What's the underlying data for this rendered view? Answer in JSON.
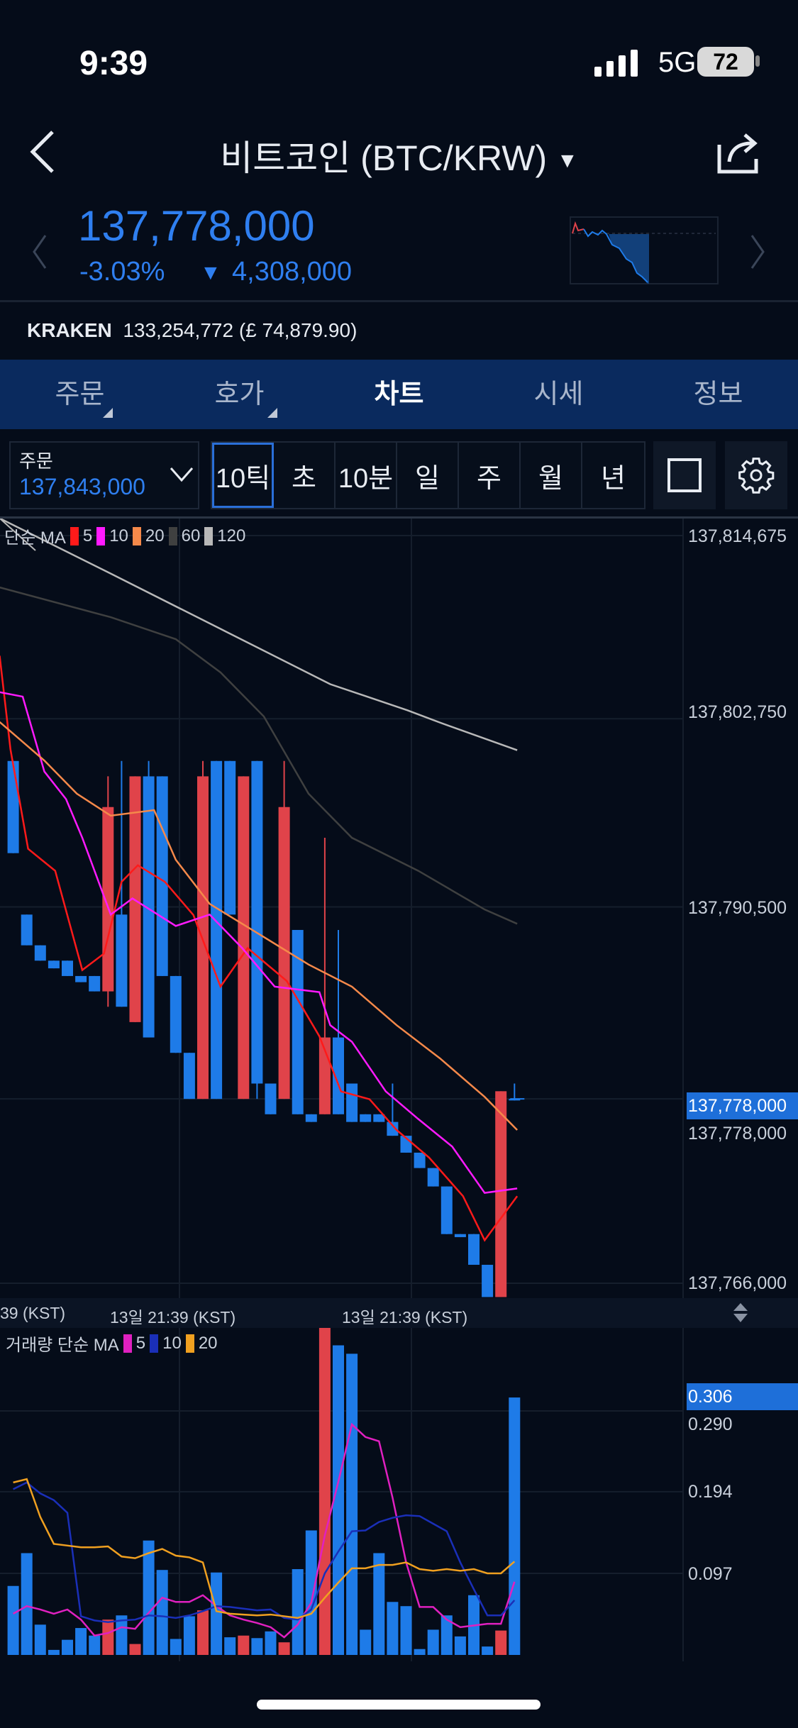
{
  "status": {
    "time": "9:39",
    "network": "5G",
    "battery": "72"
  },
  "header": {
    "title": "비트코인 (BTC/KRW)",
    "back_icon": "chevron-left-icon",
    "share_icon": "share-icon"
  },
  "quote": {
    "price": "137,778,000",
    "change_pct": "-3.03%",
    "change_arrow": "▼",
    "change_abs": "4,308,000",
    "color": "#2f7ff0"
  },
  "kraken": {
    "label": "KRAKEN",
    "value": "133,254,772 (£ 74,879.90)"
  },
  "tabs": [
    {
      "label": "주문"
    },
    {
      "label": "호가"
    },
    {
      "label": "차트",
      "active": true
    },
    {
      "label": "시세"
    },
    {
      "label": "정보"
    }
  ],
  "toolbar": {
    "order_label": "주문",
    "order_value": "137,843,000",
    "timeframes": [
      "10틱",
      "초",
      "10분",
      "일",
      "주",
      "월",
      "년"
    ],
    "selected_timeframe": "10틱"
  },
  "price_legend": {
    "title": "단순 MA",
    "items": [
      {
        "label": "5",
        "color": "#ff1a1a"
      },
      {
        "label": "10",
        "color": "#ff1aff"
      },
      {
        "label": "20",
        "color": "#f5894a"
      },
      {
        "label": "60",
        "color": "#3f4040"
      },
      {
        "label": "120",
        "color": "#b8b8b8"
      }
    ]
  },
  "volume_legend": {
    "title": "거래량 단순 MA",
    "items": [
      {
        "label": "5",
        "color": "#e020c0"
      },
      {
        "label": "10",
        "color": "#1a2fb8"
      },
      {
        "label": "20",
        "color": "#f0a020"
      }
    ]
  },
  "time_labels": [
    "39 (KST)",
    "13일 21:39 (KST)",
    "13일 21:39 (KST)"
  ],
  "chart_data": [
    {
      "type": "candlestick",
      "up_color": "#e0434a",
      "down_color": "#1e7be8",
      "y_ticks": [
        "137,814,675",
        "137,802,750",
        "137,790,500",
        "137,778,000",
        "137,766,000"
      ],
      "ylim": [
        137765000,
        137814675
      ],
      "current_price": "137,778,000",
      "candles": [
        [
          137800000,
          137800000,
          137794000,
          137794000
        ],
        [
          137790000,
          137790000,
          137788000,
          137788000
        ],
        [
          137788000,
          137788000,
          137787000,
          137787000
        ],
        [
          137787000,
          137787000,
          137786500,
          137786500
        ],
        [
          137787000,
          137787000,
          137786000,
          137786000
        ],
        [
          137786000,
          137786000,
          137785600,
          137785600
        ],
        [
          137786000,
          137786000,
          137785000,
          137785000
        ],
        [
          137785000,
          137799000,
          137784000,
          137797000
        ],
        [
          137790000,
          137800000,
          137784000,
          137784000
        ],
        [
          137783000,
          137799000,
          137783000,
          137799000
        ],
        [
          137799000,
          137800000,
          137782000,
          137782000
        ],
        [
          137799000,
          137799000,
          137786000,
          137786000
        ],
        [
          137786000,
          137786000,
          137781000,
          137781000
        ],
        [
          137781000,
          137781000,
          137778000,
          137778000
        ],
        [
          137778000,
          137800000,
          137778000,
          137799000
        ],
        [
          137800000,
          137800000,
          137778000,
          137778000
        ],
        [
          137800000,
          137800000,
          137790000,
          137790000
        ],
        [
          137778000,
          137799000,
          137778000,
          137799000
        ],
        [
          137800000,
          137800000,
          137778000,
          137779000
        ],
        [
          137779000,
          137779000,
          137777000,
          137777000
        ],
        [
          137778000,
          137800000,
          137778000,
          137797000
        ],
        [
          137789000,
          137789000,
          137777000,
          137777000
        ],
        [
          137777000,
          137777000,
          137776500,
          137776500
        ],
        [
          137777000,
          137795000,
          137777000,
          137782000
        ],
        [
          137782000,
          137789000,
          137777000,
          137777000
        ],
        [
          137779000,
          137779000,
          137776500,
          137776500
        ],
        [
          137777000,
          137777000,
          137776500,
          137776500
        ],
        [
          137777000,
          137777000,
          137776500,
          137776500
        ],
        [
          137776500,
          137779000,
          137775600,
          137775600
        ],
        [
          137775600,
          137775600,
          137774500,
          137774500
        ],
        [
          137774500,
          137774500,
          137773500,
          137773500
        ],
        [
          137773500,
          137773500,
          137772300,
          137772300
        ],
        [
          137772300,
          137772300,
          137769200,
          137769200
        ],
        [
          137769200,
          137769200,
          137769000,
          137769000
        ],
        [
          137769200,
          137769200,
          137767200,
          137767200
        ],
        [
          137767200,
          137767200,
          137765100,
          137765100
        ],
        [
          137765100,
          137778500,
          137765100,
          137778500
        ],
        [
          137778000,
          137779000,
          137777900,
          137777900
        ]
      ],
      "ma": [
        {
          "name": "5",
          "color": "#ff1a1a",
          "points": [
            [
              -1,
              137806850
            ],
            [
              -0.2,
              137800750
            ],
            [
              1.1,
              137794280
            ],
            [
              3.1,
              137792850
            ],
            [
              5.1,
              137786390
            ],
            [
              6.7,
              137787460
            ],
            [
              8,
              137792130
            ],
            [
              9.2,
              137793210
            ],
            [
              11.2,
              137792130
            ],
            [
              13.3,
              137789970
            ],
            [
              15.3,
              137785310
            ],
            [
              17.3,
              137787820
            ],
            [
              20.2,
              137785670
            ],
            [
              22.6,
              137782080
            ],
            [
              24.2,
              137778490
            ],
            [
              26.3,
              137777980
            ],
            [
              28.3,
              137775975
            ],
            [
              30.7,
              137774180
            ],
            [
              33.2,
              137771670
            ],
            [
              34.8,
              137768800
            ],
            [
              37.2,
              137771670
            ]
          ]
        },
        {
          "name": "10",
          "color": "#ff1aff",
          "points": [
            [
              -1,
              137804480
            ],
            [
              0.7,
              137804190
            ],
            [
              2.3,
              137799310
            ],
            [
              3.9,
              137797520
            ],
            [
              5.1,
              137795000
            ],
            [
              7.2,
              137790000
            ],
            [
              8.8,
              137791050
            ],
            [
              12,
              137789260
            ],
            [
              14.5,
              137790000
            ],
            [
              16.9,
              137787820
            ],
            [
              19.3,
              137785310
            ],
            [
              22.6,
              137784950
            ],
            [
              23.4,
              137782800
            ],
            [
              25,
              137781720
            ],
            [
              27.5,
              137778490
            ],
            [
              29.9,
              137776690
            ],
            [
              32.4,
              137774900
            ],
            [
              34.8,
              137771880
            ],
            [
              37.2,
              137772170
            ]
          ]
        },
        {
          "name": "20",
          "color": "#f5894a",
          "points": [
            [
              -1,
              137802540
            ],
            [
              2.3,
              137800030
            ],
            [
              4.7,
              137797870
            ],
            [
              7.2,
              137796440
            ],
            [
              10.4,
              137796800
            ],
            [
              12,
              137793570
            ],
            [
              14.5,
              137790700
            ],
            [
              18.5,
              137788540
            ],
            [
              21.8,
              137786750
            ],
            [
              25,
              137785310
            ],
            [
              28.3,
              137782800
            ],
            [
              31.5,
              137780640
            ],
            [
              34.8,
              137778130
            ],
            [
              37.2,
              137775975
            ]
          ]
        },
        {
          "name": "60",
          "color": "#3f4040",
          "points": [
            [
              -1,
              137811300
            ],
            [
              7.2,
              137809360
            ],
            [
              12,
              137807930
            ],
            [
              15.3,
              137805770
            ],
            [
              18.5,
              137802900
            ],
            [
              21.8,
              137797870
            ],
            [
              25,
              137795000
            ],
            [
              29.9,
              137792850
            ],
            [
              34.8,
              137790330
            ],
            [
              37.2,
              137789400
            ]
          ]
        },
        {
          "name": "120",
          "color": "#b8b8b8",
          "points": [
            [
              -1,
              137815800
            ],
            [
              7.2,
              137812200
            ],
            [
              15.3,
              137808600
            ],
            [
              23.4,
              137805000
            ],
            [
              29.1,
              137803300
            ],
            [
              31.5,
              137802500
            ],
            [
              37.2,
              137800700
            ]
          ]
        }
      ]
    },
    {
      "type": "bar",
      "y_ticks": [
        "0.290",
        "0.194",
        "0.097"
      ],
      "current_value": "0.306",
      "colors": [
        "B",
        "B",
        "B",
        "B",
        "B",
        "B",
        "B",
        "R",
        "B",
        "R",
        "B",
        "B",
        "B",
        "B",
        "R",
        "B",
        "B",
        "R",
        "B",
        "B",
        "R",
        "B",
        "B",
        "R",
        "B",
        "B",
        "B",
        "B",
        "B",
        "B",
        "B",
        "B",
        "B",
        "B",
        "B",
        "B",
        "R",
        "B"
      ],
      "values": [
        0.082,
        0.121,
        0.036,
        0.006,
        0.018,
        0.032,
        0.023,
        0.042,
        0.047,
        0.013,
        0.136,
        0.101,
        0.019,
        0.046,
        0.053,
        0.098,
        0.021,
        0.023,
        0.02,
        0.028,
        0.015,
        0.102,
        0.148,
        0.389,
        0.368,
        0.358,
        0.03,
        0.121,
        0.063,
        0.058,
        0.007,
        0.03,
        0.047,
        0.022,
        0.071,
        0.01,
        0.029,
        0.306
      ],
      "ma5": [
        0.049,
        0.058,
        0.054,
        0.049,
        0.054,
        0.042,
        0.023,
        0.026,
        0.033,
        0.031,
        0.05,
        0.068,
        0.063,
        0.063,
        0.071,
        0.058,
        0.047,
        0.042,
        0.038,
        0.033,
        0.021,
        0.036,
        0.062,
        0.142,
        0.206,
        0.274,
        0.259,
        0.254,
        0.187,
        0.11,
        0.057,
        0.057,
        0.042,
        0.033,
        0.035,
        0.037,
        0.037,
        0.087
      ],
      "ma10": [
        0.197,
        0.205,
        0.192,
        0.184,
        0.169,
        0.046,
        0.041,
        0.039,
        0.041,
        0.042,
        0.047,
        0.046,
        0.044,
        0.047,
        0.052,
        0.058,
        0.057,
        0.055,
        0.053,
        0.054,
        0.044,
        0.042,
        0.054,
        0.097,
        0.123,
        0.147,
        0.148,
        0.158,
        0.163,
        0.166,
        0.165,
        0.156,
        0.147,
        0.11,
        0.078,
        0.047,
        0.047,
        0.065
      ],
      "ma20": [
        0.205,
        0.209,
        0.164,
        0.132,
        0.13,
        0.128,
        0.128,
        0.129,
        0.117,
        0.115,
        0.121,
        0.126,
        0.118,
        0.116,
        0.11,
        0.052,
        0.049,
        0.048,
        0.047,
        0.048,
        0.046,
        0.044,
        0.049,
        0.068,
        0.086,
        0.103,
        0.103,
        0.107,
        0.107,
        0.11,
        0.102,
        0.1,
        0.102,
        0.1,
        0.102,
        0.097,
        0.097,
        0.111
      ]
    }
  ]
}
